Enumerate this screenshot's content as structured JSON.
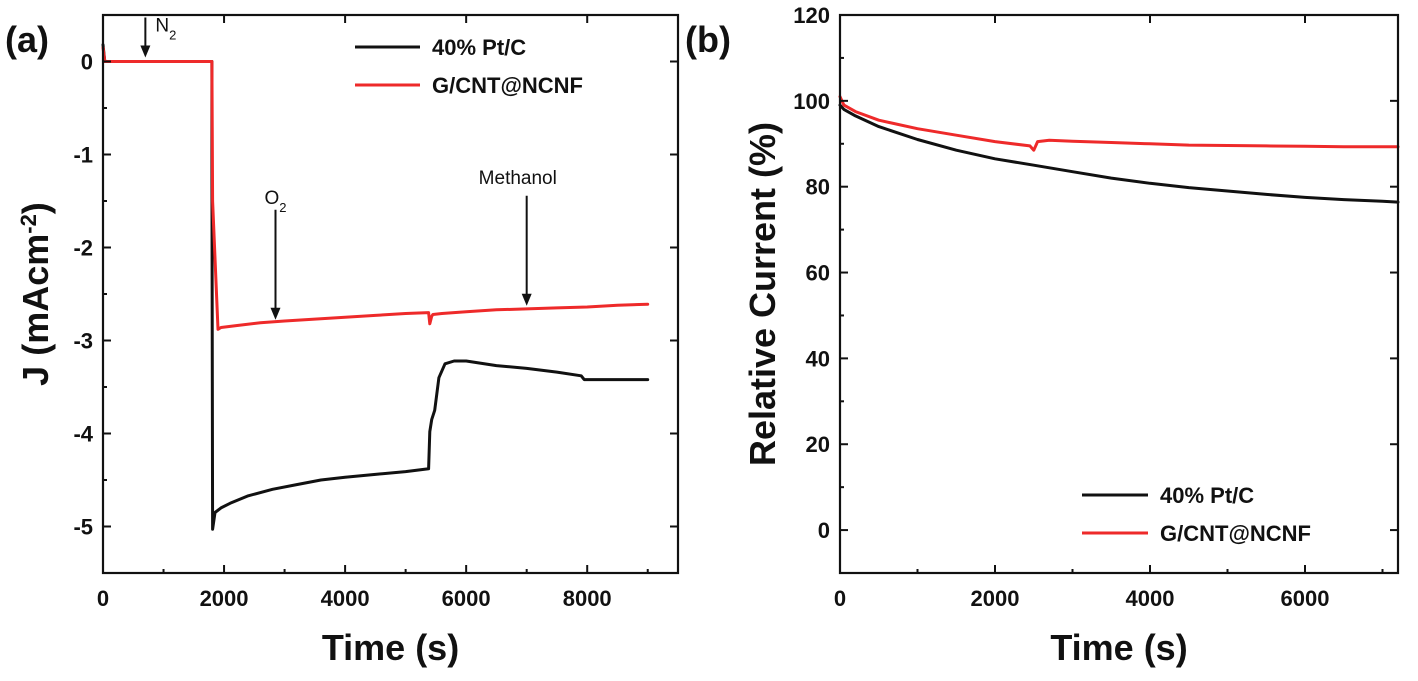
{
  "colors": {
    "black_series": "#111111",
    "red_series": "#ee2a2a"
  },
  "chart_data": [
    {
      "panel_label": "(a)",
      "type": "line",
      "xlabel": "Time (s)",
      "ylabel": "J (mAcm",
      "ylabel_superscript": "-2",
      "ylabel_end": ")",
      "xlim": [
        0,
        9500
      ],
      "ylim": [
        -5.5,
        0.5
      ],
      "xticks": [
        0,
        2000,
        4000,
        6000,
        8000
      ],
      "yticks": [
        0,
        -1,
        -2,
        -3,
        -4,
        -5
      ],
      "xtick_labels": [
        "0",
        "2000",
        "4000",
        "6000",
        "8000"
      ],
      "ytick_labels": [
        "0",
        "-1",
        "-2",
        "-3",
        "-4",
        "-5"
      ],
      "legend_position": "top-right",
      "annotations": [
        {
          "text": "N",
          "sub": "2",
          "x": 700,
          "y_tip": 0
        },
        {
          "text": "O",
          "sub": "2",
          "x": 2850,
          "y_tip": -2.82
        },
        {
          "text": "Methanol",
          "x": 7000,
          "y_tip": -2.67
        }
      ],
      "series": [
        {
          "name": "40% Pt/C",
          "color": "#111111",
          "x": [
            0,
            30,
            100,
            1800,
            1800,
            1810,
            1850,
            1950,
            2100,
            2400,
            2800,
            3200,
            3600,
            4000,
            4500,
            5000,
            5380,
            5400,
            5430,
            5480,
            5550,
            5650,
            5800,
            6000,
            6500,
            7000,
            7500,
            7900,
            7950,
            8000,
            8500,
            9000
          ],
          "y": [
            0.18,
            0,
            0,
            0,
            -1.0,
            -5.03,
            -4.85,
            -4.8,
            -4.75,
            -4.67,
            -4.6,
            -4.55,
            -4.5,
            -4.47,
            -4.44,
            -4.41,
            -4.38,
            -3.98,
            -3.85,
            -3.75,
            -3.4,
            -3.25,
            -3.22,
            -3.22,
            -3.27,
            -3.3,
            -3.34,
            -3.38,
            -3.42,
            -3.42,
            -3.42,
            -3.42
          ]
        },
        {
          "name": "G/CNT@NCNF",
          "color": "#ee2a2a",
          "x": [
            0,
            30,
            100,
            1800,
            1810,
            1900,
            1950,
            2200,
            2600,
            3000,
            3500,
            4000,
            4500,
            5000,
            5380,
            5400,
            5430,
            5450,
            5600,
            6000,
            6500,
            7000,
            7500,
            8000,
            8500,
            9000
          ],
          "y": [
            0.15,
            0,
            0,
            0,
            -1.5,
            -2.88,
            -2.86,
            -2.84,
            -2.81,
            -2.79,
            -2.77,
            -2.75,
            -2.73,
            -2.71,
            -2.7,
            -2.82,
            -2.74,
            -2.72,
            -2.71,
            -2.69,
            -2.67,
            -2.66,
            -2.65,
            -2.64,
            -2.62,
            -2.61
          ]
        }
      ]
    },
    {
      "panel_label": "(b)",
      "type": "line",
      "xlabel": "Time (s)",
      "ylabel": "Relative Current (%)",
      "xlim": [
        0,
        7200
      ],
      "ylim": [
        -10,
        120
      ],
      "xticks": [
        0,
        2000,
        4000,
        6000
      ],
      "yticks": [
        0,
        20,
        40,
        60,
        80,
        100,
        120
      ],
      "xtick_labels": [
        "0",
        "2000",
        "4000",
        "6000"
      ],
      "ytick_labels": [
        "0",
        "20",
        "40",
        "60",
        "80",
        "100",
        "120"
      ],
      "legend_position": "bottom-right",
      "series": [
        {
          "name": "40% Pt/C",
          "color": "#111111",
          "x": [
            0,
            50,
            200,
            500,
            1000,
            1500,
            2000,
            2500,
            3000,
            3500,
            4000,
            4500,
            5000,
            5500,
            6000,
            6500,
            7000,
            7200
          ],
          "y": [
            99,
            98,
            96.5,
            94,
            91,
            88.5,
            86.5,
            85,
            83.5,
            82,
            80.8,
            79.8,
            79,
            78.2,
            77.5,
            77,
            76.6,
            76.4
          ]
        },
        {
          "name": "G/CNT@NCNF",
          "color": "#ee2a2a",
          "x": [
            0,
            50,
            200,
            500,
            1000,
            1500,
            2000,
            2450,
            2500,
            2550,
            2700,
            3000,
            3500,
            4000,
            4500,
            5000,
            5500,
            6000,
            6500,
            7000,
            7200
          ],
          "y": [
            101,
            99,
            97.5,
            95.5,
            93.5,
            92,
            90.5,
            89.5,
            88.5,
            90.5,
            90.8,
            90.6,
            90.3,
            90.0,
            89.7,
            89.6,
            89.5,
            89.4,
            89.3,
            89.3,
            89.3
          ]
        }
      ]
    }
  ]
}
